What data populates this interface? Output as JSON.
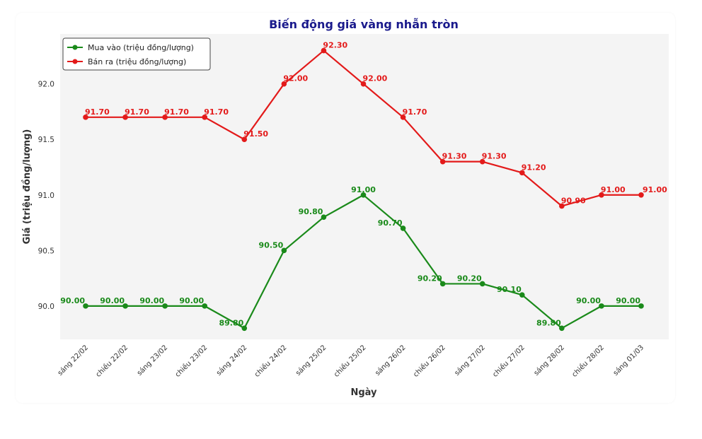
{
  "chart_data": {
    "type": "line",
    "title": "Biến động giá vàng nhẫn tròn",
    "xlabel": "Ngày",
    "ylabel": "Giá (triệu đồng/lượng)",
    "ylim": [
      89.7,
      92.45
    ],
    "yticks": [
      "90.0",
      "90.5",
      "91.0",
      "91.5",
      "92.0"
    ],
    "ytick_values": [
      90.0,
      90.5,
      91.0,
      91.5,
      92.0
    ],
    "grid": false,
    "legend_position": "top-left",
    "categories": [
      "sáng 22/02",
      "chiều 22/02",
      "sáng 23/02",
      "chiều 23/02",
      "sáng 24/02",
      "chiều 24/02",
      "sáng 25/02",
      "chiều 25/02",
      "sáng 26/02",
      "chiều 26/02",
      "sáng 27/02",
      "chiều 27/02",
      "sáng 28/02",
      "chiều 28/02",
      "sáng 01/03"
    ],
    "series": [
      {
        "name": "Mua vào (triệu đồng/lượng)",
        "color": "#1a8a1a",
        "values": [
          90.0,
          90.0,
          90.0,
          90.0,
          89.8,
          90.5,
          90.8,
          91.0,
          90.7,
          90.2,
          90.2,
          90.1,
          89.8,
          90.0,
          90.0
        ],
        "labels": [
          "90.00",
          "90.00",
          "90.00",
          "90.00",
          "89.80",
          "90.50",
          "90.80",
          "91.00",
          "90.70",
          "90.20",
          "90.20",
          "90.10",
          "89.80",
          "90.00",
          "90.00"
        ]
      },
      {
        "name": "Bán ra (triệu đồng/lượng)",
        "color": "#e31a1a",
        "values": [
          91.7,
          91.7,
          91.7,
          91.7,
          91.5,
          92.0,
          92.3,
          92.0,
          91.7,
          91.3,
          91.3,
          91.2,
          90.9,
          91.0,
          91.0
        ],
        "labels": [
          "91.70",
          "91.70",
          "91.70",
          "91.70",
          "91.50",
          "92.00",
          "92.30",
          "92.00",
          "91.70",
          "91.30",
          "91.30",
          "91.20",
          "90.90",
          "91.00",
          "91.00"
        ]
      }
    ]
  }
}
